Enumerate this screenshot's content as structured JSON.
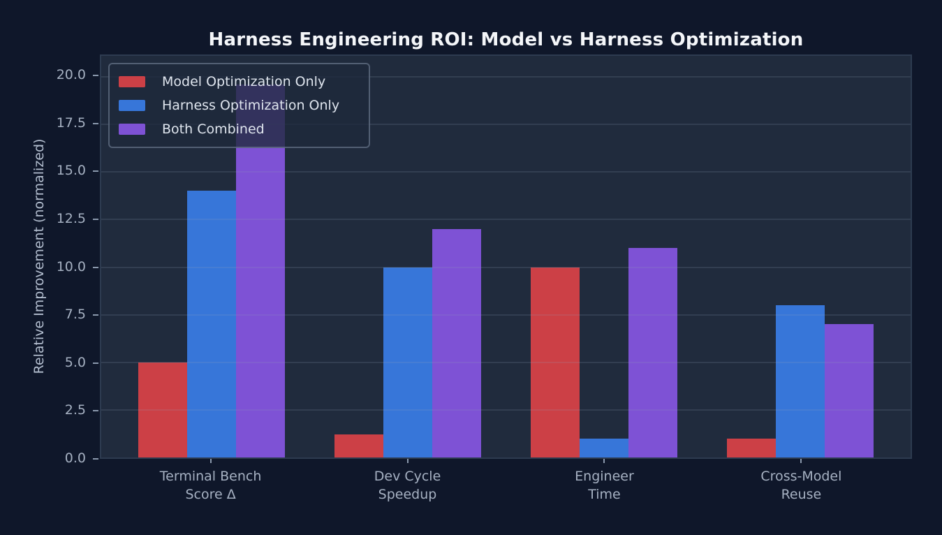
{
  "title": "Harness Engineering ROI: Model vs Harness Optimization",
  "chart_data": {
    "type": "bar",
    "title": "Harness Engineering ROI: Model vs Harness Optimization",
    "xlabel": "",
    "ylabel": "Relative Improvement (normalized)",
    "categories": [
      "Terminal Bench\nScore Δ",
      "Dev Cycle\nSpeedup",
      "Engineer\nTime",
      "Cross-Model\nReuse"
    ],
    "series": [
      {
        "name": "Model Optimization Only",
        "color": "#cc4046",
        "values": [
          5,
          1.2,
          10,
          1
        ]
      },
      {
        "name": "Harness Optimization Only",
        "color": "#3776d9",
        "values": [
          14,
          10,
          1,
          8
        ]
      },
      {
        "name": "Both Combined",
        "color": "#7e52d5",
        "values": [
          19.6,
          12,
          11,
          7
        ]
      }
    ],
    "ylim": [
      0,
      21.1
    ],
    "yticks": [
      {
        "value": 0,
        "label": "0.0"
      },
      {
        "value": 2.5,
        "label": "2.5"
      },
      {
        "value": 5,
        "label": "5.0"
      },
      {
        "value": 7.5,
        "label": "7.5"
      },
      {
        "value": 10,
        "label": "10.0"
      },
      {
        "value": 12.5,
        "label": "12.5"
      },
      {
        "value": 15,
        "label": "15.0"
      },
      {
        "value": 17.5,
        "label": "17.5"
      },
      {
        "value": 20,
        "label": "20.0"
      }
    ],
    "grid": "horizontal",
    "legend_position": "upper left",
    "colors": {
      "figure_background": "#0f172a",
      "plot_background": "#202b3d",
      "gridline": "#3a465a",
      "tick_text": "#a6b1c2",
      "title_text": "#f4f6f9"
    }
  }
}
